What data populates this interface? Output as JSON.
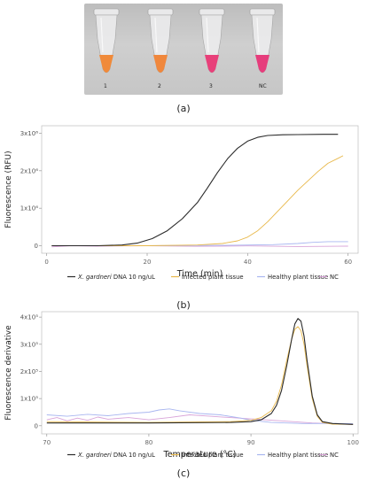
{
  "panels": {
    "a": {
      "label": "(a)",
      "tubes": [
        {
          "label": "1",
          "color": "#f08a3a"
        },
        {
          "label": "2",
          "color": "#f0873c"
        },
        {
          "label": "3",
          "color": "#e8407a"
        },
        {
          "label": "NC",
          "color": "#e63d7c"
        }
      ]
    },
    "b": {
      "label": "(b)"
    },
    "c": {
      "label": "(c)"
    }
  },
  "legend": [
    {
      "name_italic": "X. gardneri",
      "name_rest": " DNA 10 ng/uL",
      "color": "#2b2b2b"
    },
    {
      "name_italic": "",
      "name_rest": "Infected plant tissue",
      "color": "#e8b84a"
    },
    {
      "name_italic": "",
      "name_rest": "Healthy plant tissue",
      "color": "#a9b6f0"
    },
    {
      "name_italic": "",
      "name_rest": "NC",
      "color": "#d9a4d9"
    }
  ],
  "chart_data": [
    {
      "type": "line",
      "xlabel": "Time (min)",
      "ylabel": "Fluorescence (RFU)",
      "xlim": [
        -1,
        62
      ],
      "ylim": [
        -200000,
        3200000
      ],
      "xticks": [
        0,
        20,
        40,
        60
      ],
      "yticks": [
        {
          "value": 0,
          "label": "0"
        },
        {
          "value": 1000000,
          "label": "1x10⁶"
        },
        {
          "value": 2000000,
          "label": "2x10⁶"
        },
        {
          "value": 3000000,
          "label": "3x10⁶"
        }
      ],
      "series": [
        {
          "name": "X. gardneri DNA 10 ng/uL",
          "x": [
            1,
            10,
            15,
            18,
            21,
            24,
            27,
            30,
            32,
            34,
            36,
            38,
            40,
            42,
            44,
            47,
            50,
            55,
            58
          ],
          "y": [
            0,
            0,
            20000,
            70000,
            190000,
            400000,
            720000,
            1150000,
            1540000,
            1950000,
            2320000,
            2600000,
            2790000,
            2890000,
            2940000,
            2960000,
            2965000,
            2970000,
            2970000
          ]
        },
        {
          "name": "Infected plant tissue",
          "x": [
            1,
            20,
            30,
            35,
            38,
            40,
            42,
            44,
            46,
            48,
            50,
            52,
            54,
            56,
            58,
            59
          ],
          "y": [
            0,
            0,
            20000,
            60000,
            130000,
            230000,
            400000,
            640000,
            920000,
            1200000,
            1480000,
            1730000,
            1980000,
            2200000,
            2330000,
            2400000
          ]
        },
        {
          "name": "Healthy plant tissue",
          "x": [
            1,
            20,
            35,
            45,
            50,
            53,
            56,
            60
          ],
          "y": [
            0,
            0,
            10000,
            30000,
            60000,
            90000,
            110000,
            110000
          ]
        },
        {
          "name": "NC",
          "x": [
            1,
            5,
            10,
            20,
            30,
            40,
            50,
            60
          ],
          "y": [
            -30000,
            0,
            -10000,
            0,
            -15000,
            -5000,
            -20000,
            -10000
          ]
        }
      ]
    },
    {
      "type": "line",
      "xlabel": "Temperature (°C)",
      "ylabel": "Fluorescence derivative",
      "xlim": [
        69.5,
        100.5
      ],
      "ylim": [
        -30000,
        420000
      ],
      "xticks": [
        70,
        80,
        90,
        100
      ],
      "yticks": [
        {
          "value": 0,
          "label": "0"
        },
        {
          "value": 100000,
          "label": "1x10⁵"
        },
        {
          "value": 200000,
          "label": "2x10⁵"
        },
        {
          "value": 300000,
          "label": "3x10⁵"
        },
        {
          "value": 400000,
          "label": "4x10⁵"
        }
      ],
      "series": [
        {
          "name": "X. gardneri DNA 10 ng/uL",
          "x": [
            70,
            80,
            88,
            90,
            91,
            92,
            92.5,
            93,
            93.5,
            94,
            94.3,
            94.6,
            94.9,
            95.2,
            95.5,
            96,
            96.5,
            97,
            98,
            100
          ],
          "y": [
            10000,
            10000,
            12000,
            15000,
            22000,
            45000,
            75000,
            130000,
            220000,
            320000,
            375000,
            395000,
            385000,
            330000,
            240000,
            110000,
            40000,
            15000,
            8000,
            5000
          ]
        },
        {
          "name": "Infected plant tissue",
          "x": [
            70,
            80,
            88,
            90,
            91,
            92,
            92.5,
            93,
            93.5,
            94,
            94.3,
            94.6,
            94.9,
            95.2,
            95.5,
            96,
            96.5,
            97,
            98,
            100
          ],
          "y": [
            15000,
            12000,
            15000,
            20000,
            30000,
            55000,
            90000,
            150000,
            240000,
            320000,
            355000,
            365000,
            350000,
            300000,
            220000,
            100000,
            35000,
            12000,
            6000,
            5000
          ]
        },
        {
          "name": "Healthy plant tissue",
          "x": [
            70,
            72,
            74,
            76,
            78,
            80,
            81,
            82,
            83,
            85,
            87,
            89,
            90,
            92,
            95,
            100
          ],
          "y": [
            40000,
            35000,
            42000,
            37000,
            45000,
            50000,
            58000,
            62000,
            55000,
            45000,
            40000,
            28000,
            20000,
            12000,
            8000,
            8000
          ]
        },
        {
          "name": "NC",
          "x": [
            70,
            71,
            72,
            73,
            74,
            75,
            76,
            78,
            80,
            82,
            84,
            86,
            88,
            90,
            93,
            96,
            100
          ],
          "y": [
            22000,
            30000,
            18000,
            28000,
            20000,
            32000,
            24000,
            30000,
            22000,
            30000,
            40000,
            35000,
            30000,
            25000,
            18000,
            10000,
            5000
          ]
        }
      ]
    }
  ]
}
